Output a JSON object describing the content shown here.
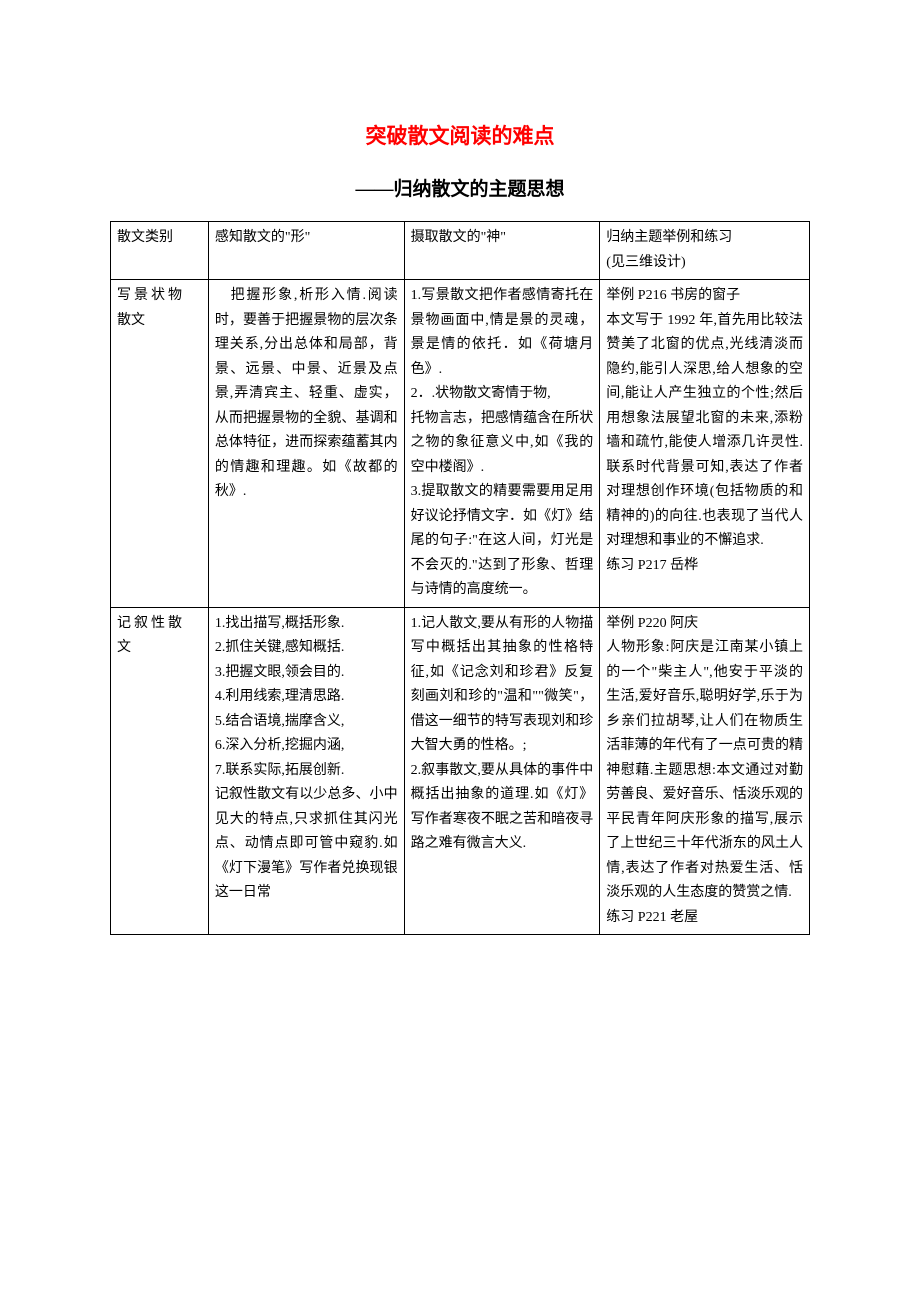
{
  "title": "突破散文阅读的难点",
  "subtitle": "——归纳散文的主题思想",
  "table": {
    "header": {
      "col1": "散文类别",
      "col2": "感知散文的\"形\"",
      "col3": "摄取散文的\"神\"",
      "col4_line1": "归纳主题举例和练习",
      "col4_line2": "(见三维设计)"
    },
    "row1": {
      "col1_a": "写景状物",
      "col1_b": "散文",
      "col2": "　把握形象,析形入情.阅读时，要善于把握景物的层次条理关系,分出总体和局部，背景、远景、中景、近景及点景,弄清宾主、轻重、虚实，从而把握景物的全貌、基调和总体特征，进而探索蕴蓄其内的情趣和理趣。如《故都的秋》.",
      "col3": "1.写景散文把作者感情寄托在景物画面中,情是景的灵魂，景是情的依托．如《荷塘月色》.\n2．.状物散文寄情于物,\n托物言志，把感情蕴含在所状之物的象征意义中,如《我的空中楼阁》.\n3.提取散文的精要需要用足用好议论抒情文字．如《灯》结尾的句子:\"在这人间，灯光是不会灭的.\"达到了形象、哲理与诗情的高度统一。",
      "col4": "举例 P216 书房的窗子\n本文写于 1992 年,首先用比较法赞美了北窗的优点,光线清淡而隐约,能引人深思,给人想象的空间,能让人产生独立的个性;然后用想象法展望北窗的未来,添粉墙和疏竹,能使人增添几许灵性.联系时代背景可知,表达了作者对理想创作环境(包括物质的和精神的)的向往.也表现了当代人对理想和事业的不懈追求.\n练习 P217 岳桦"
    },
    "row2": {
      "col1_a": "记叙性散",
      "col1_b": "文",
      "col2": "1.找出描写,概括形象.\n2.抓住关键,感知概括.\n3.把握文眼,领会目的.\n4.利用线索,理清思路.\n5.结合语境,揣摩含义,\n6.深入分析,挖掘内涵,\n7.联系实际,拓展创新.\n记叙性散文有以少总多、小中见大的特点,只求抓住其闪光点、动情点即可管中窥豹.如《灯下漫笔》写作者兑换现银这一日常",
      "col3": "1.记人散文,要从有形的人物描写中概括出其抽象的性格特征,如《记念刘和珍君》反复刻画刘和珍的\"温和\"\"微笑\"，借这一细节的特写表现刘和珍大智大勇的性格。;\n2.叙事散文,要从具体的事件中概括出抽象的道理.如《灯》写作者寒夜不眠之苦和暗夜寻路之难有微言大义.",
      "col4": "举例 P220 阿庆\n人物形象:阿庆是江南某小镇上的一个\"柴主人\",他安于平淡的生活,爱好音乐,聪明好学,乐于为乡亲们拉胡琴,让人们在物质生活菲薄的年代有了一点可贵的精神慰藉.主题思想:本文通过对勤劳善良、爱好音乐、恬淡乐观的平民青年阿庆形象的描写,展示了上世纪三十年代浙东的风土人情,表达了作者对热爱生活、恬淡乐观的人生态度的赞赏之情.\n练习 P221 老屋"
    }
  },
  "colors": {
    "title": "#ff0000",
    "text": "#000000",
    "border": "#000000",
    "background": "#ffffff"
  },
  "typography": {
    "title_fontsize": 21,
    "subtitle_fontsize": 19,
    "body_fontsize": 14,
    "line_height": 1.75
  }
}
